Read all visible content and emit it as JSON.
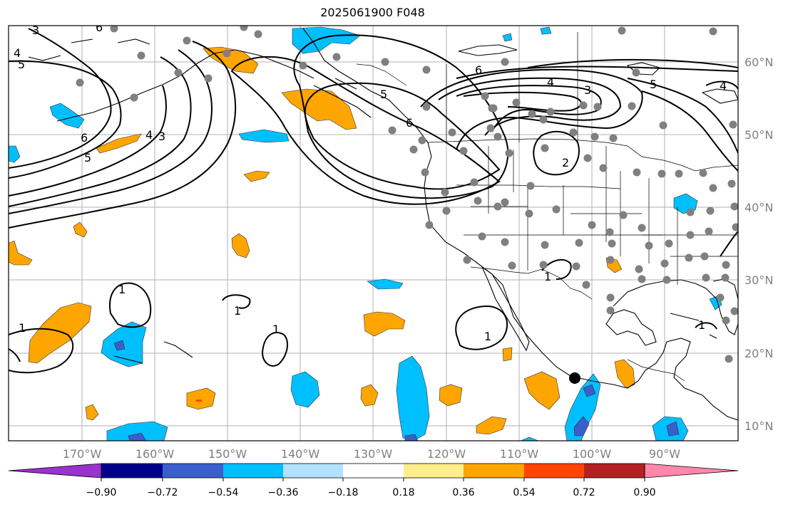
{
  "title": "2025061900 F048",
  "lon_labels": [
    "170°W",
    "160°W",
    "150°W",
    "140°W",
    "130°W",
    "120°W",
    "110°W",
    "100°W",
    "90°W"
  ],
  "lat_labels": [
    "60°N",
    "50°N",
    "40°N",
    "30°N",
    "20°N",
    "10°N"
  ],
  "colorbar": {
    "colors": [
      "#9a32cd",
      "#00008b",
      "#3a5fcd",
      "#00bfff",
      "#b2e2ff",
      "#ffffff",
      "#ffee8c",
      "#ffa500",
      "#ff4500",
      "#b22222",
      "#ff88aa"
    ],
    "tick_labels": [
      "−0.90",
      "−0.72",
      "−0.54",
      "−0.36",
      "−0.18",
      "0.18",
      "0.36",
      "0.54",
      "0.72",
      "0.90"
    ]
  },
  "contour_labels": [
    "6",
    "5",
    "4",
    "3",
    "6",
    "5",
    "4",
    "3",
    "4",
    "5",
    "6",
    "5",
    "3",
    "4",
    "2",
    "6",
    "1",
    "1",
    "1",
    "1",
    "1",
    "1",
    "1"
  ],
  "colors": {
    "orange": "#ffa500",
    "cyan": "#00bfff",
    "blue": "#3a5fcd",
    "gridline": "#b0b0b0",
    "station": "#808080"
  },
  "marker_label": ""
}
